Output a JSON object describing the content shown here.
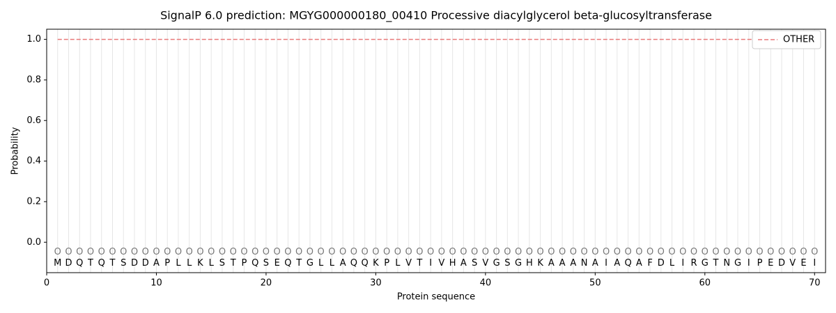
{
  "chart_data": {
    "type": "line",
    "title": "SignalP 6.0 prediction: MGYG000000180_00410 Processive diacylglycerol beta-glucosyltransferase",
    "x_label": "Protein sequence",
    "y_label": "Probability",
    "x": [
      1,
      2,
      3,
      4,
      5,
      6,
      7,
      8,
      9,
      10,
      11,
      12,
      13,
      14,
      15,
      16,
      17,
      18,
      19,
      20,
      21,
      22,
      23,
      24,
      25,
      26,
      27,
      28,
      29,
      30,
      31,
      32,
      33,
      34,
      35,
      36,
      37,
      38,
      39,
      40,
      41,
      42,
      43,
      44,
      45,
      46,
      47,
      48,
      49,
      50,
      51,
      52,
      53,
      54,
      55,
      56,
      57,
      58,
      59,
      60,
      61,
      62,
      63,
      64,
      65,
      66,
      67,
      68,
      69,
      70
    ],
    "residues": [
      "M",
      "D",
      "Q",
      "T",
      "Q",
      "T",
      "S",
      "D",
      "D",
      "A",
      "P",
      "L",
      "L",
      "K",
      "L",
      "S",
      "T",
      "P",
      "Q",
      "S",
      "E",
      "Q",
      "T",
      "G",
      "L",
      "L",
      "A",
      "Q",
      "Q",
      "K",
      "P",
      "L",
      "V",
      "T",
      "I",
      "V",
      "H",
      "A",
      "S",
      "V",
      "G",
      "S",
      "G",
      "H",
      "K",
      "A",
      "A",
      "A",
      "N",
      "A",
      "I",
      "A",
      "Q",
      "A",
      "F",
      "D",
      "L",
      "I",
      "R",
      "G",
      "T",
      "N",
      "G",
      "I",
      "P",
      "E",
      "D",
      "V",
      "E",
      "I"
    ],
    "labels": [
      "O",
      "O",
      "O",
      "O",
      "O",
      "O",
      "O",
      "O",
      "O",
      "O",
      "O",
      "O",
      "O",
      "O",
      "O",
      "O",
      "O",
      "O",
      "O",
      "O",
      "O",
      "O",
      "O",
      "O",
      "O",
      "O",
      "O",
      "O",
      "O",
      "O",
      "O",
      "O",
      "O",
      "O",
      "O",
      "O",
      "O",
      "O",
      "O",
      "O",
      "O",
      "O",
      "O",
      "O",
      "O",
      "O",
      "O",
      "O",
      "O",
      "O",
      "O",
      "O",
      "O",
      "O",
      "O",
      "O",
      "O",
      "O",
      "O",
      "O",
      "O",
      "O",
      "O",
      "O",
      "O",
      "O",
      "O",
      "O",
      "O",
      "O"
    ],
    "series": [
      {
        "name": "OTHER",
        "color": "#e8797a",
        "dashed": true,
        "values": [
          1,
          1,
          1,
          1,
          1,
          1,
          1,
          1,
          1,
          1,
          1,
          1,
          1,
          1,
          1,
          1,
          1,
          1,
          1,
          1,
          1,
          1,
          1,
          1,
          1,
          1,
          1,
          1,
          1,
          1,
          1,
          1,
          1,
          1,
          1,
          1,
          1,
          1,
          1,
          1,
          1,
          1,
          1,
          1,
          1,
          1,
          1,
          1,
          1,
          1,
          1,
          1,
          1,
          1,
          1,
          1,
          1,
          1,
          1,
          1,
          1,
          1,
          1,
          1,
          1,
          1,
          1,
          1,
          1,
          1
        ]
      }
    ],
    "xlim": [
      0,
      71
    ],
    "ylim": [
      -0.15,
      1.05
    ],
    "xticks": [
      0,
      10,
      20,
      30,
      40,
      50,
      60,
      70
    ],
    "yticks": [
      {
        "value": 0,
        "label": "0.0"
      },
      0.2,
      0.4,
      0.6,
      0.8,
      {
        "value": 1,
        "label": "1.0"
      }
    ],
    "legend": "upper right"
  }
}
